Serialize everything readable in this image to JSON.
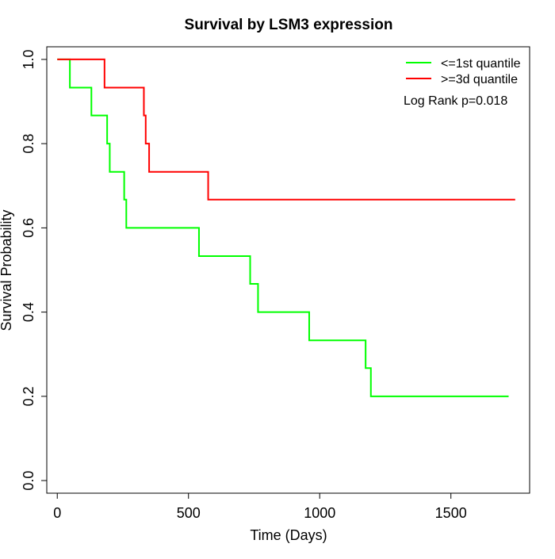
{
  "chart_data": {
    "type": "line",
    "title": "Survival by LSM3 expression",
    "xlabel": "Time (Days)",
    "ylabel": "Survival Probability",
    "xlim": [
      -40,
      1800
    ],
    "ylim": [
      -0.03,
      1.03
    ],
    "xticks": [
      0,
      500,
      1000,
      1500
    ],
    "yticks": [
      0.0,
      0.2,
      0.4,
      0.6,
      0.8,
      1.0
    ],
    "xtick_labels": [
      "0",
      "500",
      "1000",
      "1500"
    ],
    "ytick_labels": [
      "0.0",
      "0.2",
      "0.4",
      "0.6",
      "0.8",
      "1.0"
    ],
    "grid": false,
    "legend_position": "top-right",
    "step": true,
    "series": [
      {
        "name": "<=1st quantile",
        "color": "#00ff00",
        "x": [
          0,
          48,
          130,
          190,
          200,
          255,
          263,
          540,
          735,
          765,
          960,
          1175,
          1195,
          1720
        ],
        "y": [
          1.0,
          0.933,
          0.867,
          0.8,
          0.733,
          0.667,
          0.6,
          0.533,
          0.467,
          0.4,
          0.333,
          0.267,
          0.2,
          0.2
        ]
      },
      {
        "name": ">=3d quantile",
        "color": "#ff0000",
        "x": [
          0,
          180,
          330,
          337,
          350,
          575,
          1745
        ],
        "y": [
          1.0,
          0.933,
          0.867,
          0.8,
          0.733,
          0.667,
          0.667
        ]
      }
    ],
    "annotation": "Log Rank p=0.018"
  }
}
